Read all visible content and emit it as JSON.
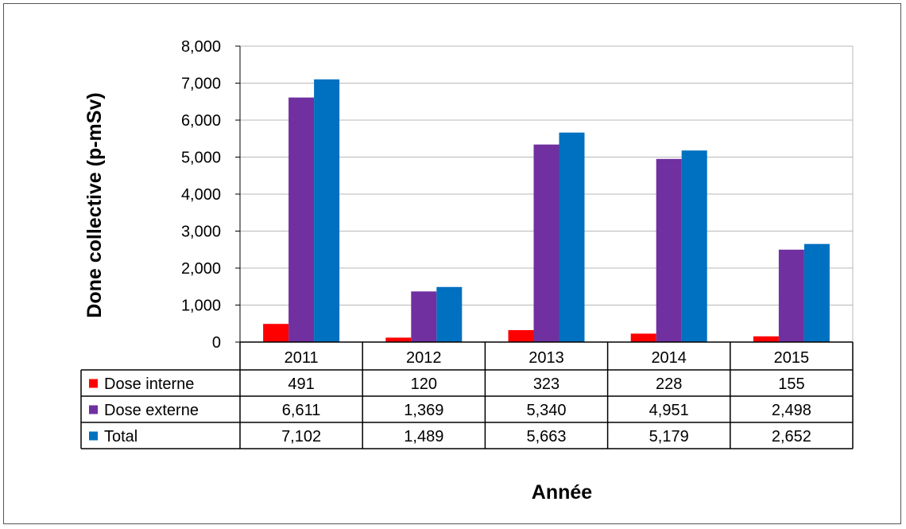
{
  "chart_data": {
    "type": "bar",
    "categories": [
      "2011",
      "2012",
      "2013",
      "2014",
      "2015"
    ],
    "series": [
      {
        "name": "Dose interne",
        "color": "#ff0000",
        "values": [
          491,
          120,
          323,
          228,
          155
        ],
        "labels": [
          "491",
          "120",
          "323",
          "228",
          "155"
        ]
      },
      {
        "name": "Dose externe",
        "color": "#7030a0",
        "values": [
          6611,
          1369,
          5340,
          4951,
          2498
        ],
        "labels": [
          "6,611",
          "1,369",
          "5,340",
          "4,951",
          "2,498"
        ]
      },
      {
        "name": "Total",
        "color": "#0070c0",
        "values": [
          7102,
          1489,
          5663,
          5179,
          2652
        ],
        "labels": [
          "7,102",
          "1,489",
          "5,663",
          "5,179",
          "2,652"
        ]
      }
    ],
    "ylabel": "Done collective (p-mSv)",
    "xlabel": "Année",
    "ylim": [
      0,
      8000
    ],
    "yticks": [
      "0",
      "1,000",
      "2,000",
      "3,000",
      "4,000",
      "5,000",
      "6,000",
      "7,000",
      "8,000"
    ],
    "grid": true,
    "legend": "data-table"
  }
}
